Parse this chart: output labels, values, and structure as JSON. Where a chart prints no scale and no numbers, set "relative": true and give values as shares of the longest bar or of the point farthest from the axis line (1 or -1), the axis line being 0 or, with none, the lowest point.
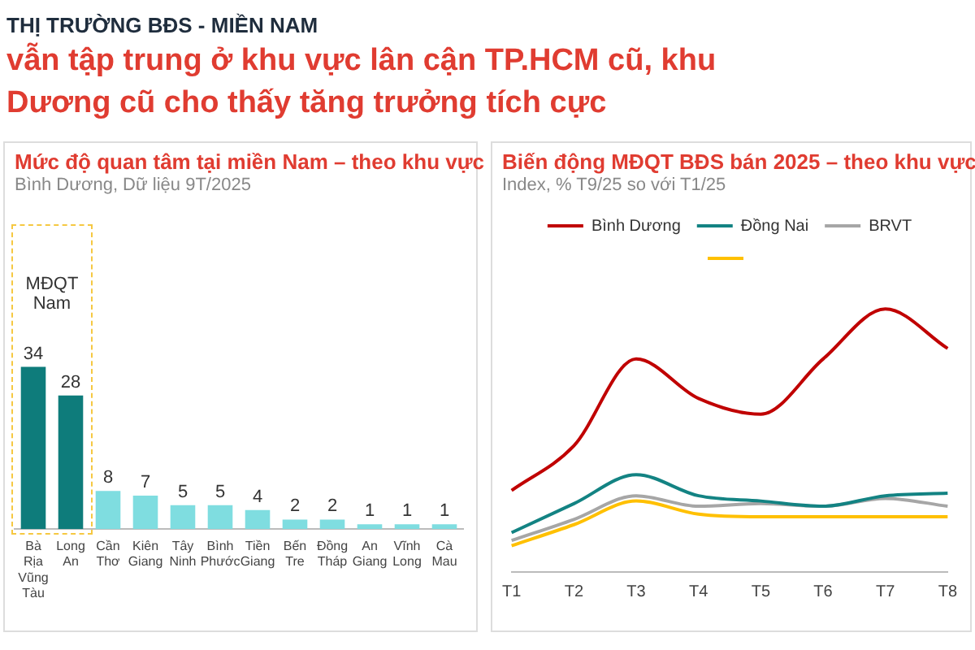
{
  "chart_data": [
    {
      "type": "bar",
      "title": "Mức độ quan tâm tại miền Nam – theo khu vực",
      "subtitle": "Bình Dương, Dữ liệu 9T/2025",
      "annotations": [
        "THỊ TRƯỜNG BĐS - MIỀN NAM",
        "vẫn tập trung ở khu vực lân cận TP.HCM cũ, khu",
        "Dương cũ cho thấy tăng trưởng tích cực",
        "MĐQT Nam"
      ],
      "categories": [
        "Bà Rịa Vũng Tàu",
        "Long An",
        "Cần Thơ",
        "Kiên Giang",
        "Tây Ninh",
        "Bình Phước",
        "Tiền Giang",
        "Bến Tre",
        "Đồng Tháp",
        "An Giang",
        "Vĩnh Long",
        "Cà Mau"
      ],
      "values": [
        34,
        28,
        8,
        7,
        5,
        5,
        4,
        2,
        2,
        1,
        1,
        1
      ],
      "colors": [
        "#0e7c7b",
        "#0e7c7b",
        "#7fdde0",
        "#7fdde0",
        "#7fdde0",
        "#7fdde0",
        "#7fdde0",
        "#7fdde0",
        "#7fdde0",
        "#7fdde0",
        "#7fdde0",
        "#7fdde0"
      ],
      "data_labels": true,
      "grid": false,
      "legend": false
    },
    {
      "type": "line",
      "title": "Biến động MĐQT BĐS bán 2025 – theo khu vực",
      "subtitle": "Index, %  T9/25 so với T1/25",
      "categories": [
        "T1",
        "T2",
        "T3",
        "T4",
        "T5",
        "T6",
        "T7",
        "T8"
      ],
      "relative": true,
      "grid": false,
      "legend": "top",
      "marker": "none",
      "series": [
        {
          "name": "Bình Dương",
          "color": "#c00000",
          "values": [
            0.31,
            0.48,
            0.81,
            0.66,
            0.6,
            0.81,
            1,
            0.85
          ]
        },
        {
          "name": "Đồng Nai",
          "color": "#138383",
          "values": [
            0.15,
            0.26,
            0.37,
            0.29,
            0.27,
            0.25,
            0.29,
            0.3
          ]
        },
        {
          "name": "BRVT",
          "color": "#a6a6a6",
          "values": [
            0.12,
            0.2,
            0.29,
            0.25,
            0.26,
            0.25,
            0.28,
            0.25
          ]
        },
        {
          "color": "#ffc000",
          "values": [
            0.1,
            0.18,
            0.27,
            0.22,
            0.21,
            0.21,
            0.21,
            0.21
          ]
        }
      ]
    }
  ]
}
